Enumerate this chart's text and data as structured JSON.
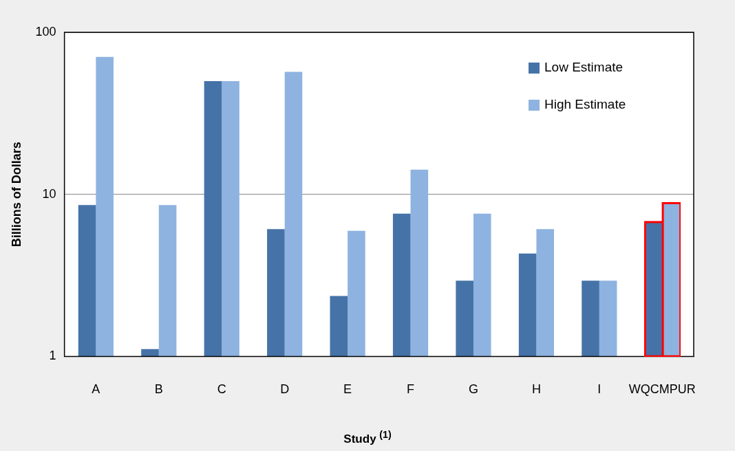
{
  "chart_data": {
    "type": "bar",
    "xlabel": "Study $^{(1)}$",
    "ylabel": "Billions of Dollars",
    "categories": [
      "A",
      "B",
      "C",
      "D",
      "E",
      "F",
      "G",
      "H",
      "I",
      "WQCMPUR"
    ],
    "series": [
      {
        "name": "Low Estimate",
        "color": "#4673a7",
        "values": [
          8.6,
          1.11,
          50,
          6.1,
          2.36,
          7.6,
          2.93,
          4.31,
          2.93,
          6.8
        ]
      },
      {
        "name": "High Estimate",
        "color": "#8eb3e0",
        "values": [
          70.5,
          8.6,
          50,
          57,
          5.95,
          14.2,
          7.6,
          6.1,
          2.93,
          8.9
        ]
      }
    ],
    "log": true,
    "ylim": [
      1,
      100
    ],
    "yticks": [
      1,
      10,
      100
    ],
    "grid": "y",
    "legend": "top right"
  }
}
